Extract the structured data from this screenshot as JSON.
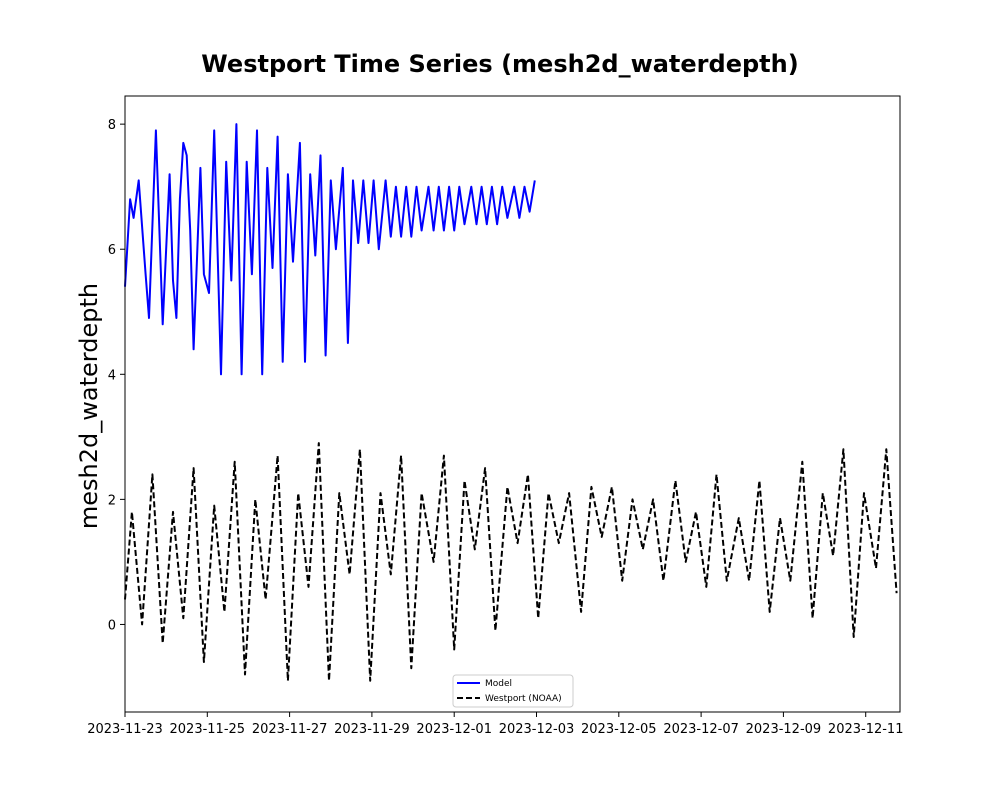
{
  "chart_data": {
    "type": "line",
    "title": "Westport Time Series (mesh2d_waterdepth)",
    "xlabel": "",
    "ylabel": "mesh2d_waterdepth",
    "x_axis": "date",
    "xlim": [
      "2023-11-23T00:00",
      "2023-12-11T20:00"
    ],
    "ylim": [
      -1.4,
      8.45
    ],
    "x_ticks": [
      "2023-11-23",
      "2023-11-25",
      "2023-11-27",
      "2023-11-29",
      "2023-12-01",
      "2023-12-03",
      "2023-12-05",
      "2023-12-07",
      "2023-12-09",
      "2023-12-11"
    ],
    "y_ticks": [
      0,
      2,
      4,
      6,
      8
    ],
    "grid": false,
    "legend_position": "bottom-center",
    "series": [
      {
        "name": "Model",
        "color": "#0000ff",
        "style": "solid",
        "x": [
          "2023-11-23T00:00",
          "2023-11-23T03:00",
          "2023-11-23T05:00",
          "2023-11-23T08:00",
          "2023-11-23T12:00",
          "2023-11-23T14:00",
          "2023-11-23T18:00",
          "2023-11-23T22:00",
          "2023-11-24T02:00",
          "2023-11-24T04:00",
          "2023-11-24T06:00",
          "2023-11-24T08:00",
          "2023-11-24T10:00",
          "2023-11-24T12:00",
          "2023-11-24T14:00",
          "2023-11-24T16:00",
          "2023-11-24T20:00",
          "2023-11-24T22:00",
          "2023-11-25T01:00",
          "2023-11-25T04:00",
          "2023-11-25T08:00",
          "2023-11-25T11:00",
          "2023-11-25T14:00",
          "2023-11-25T17:00",
          "2023-11-25T20:00",
          "2023-11-25T23:00",
          "2023-11-26T02:00",
          "2023-11-26T05:00",
          "2023-11-26T08:00",
          "2023-11-26T11:00",
          "2023-11-26T14:00",
          "2023-11-26T17:00",
          "2023-11-26T20:00",
          "2023-11-26T23:00",
          "2023-11-27T02:00",
          "2023-11-27T06:00",
          "2023-11-27T09:00",
          "2023-11-27T12:00",
          "2023-11-27T15:00",
          "2023-11-27T18:00",
          "2023-11-27T21:00",
          "2023-11-28T00:00",
          "2023-11-28T03:00",
          "2023-11-28T07:00",
          "2023-11-28T10:00",
          "2023-11-28T13:00",
          "2023-11-28T16:00",
          "2023-11-28T19:00",
          "2023-11-28T22:00",
          "2023-11-29T01:00",
          "2023-11-29T04:00",
          "2023-11-29T08:00",
          "2023-11-29T11:00",
          "2023-11-29T14:00",
          "2023-11-29T17:00",
          "2023-11-29T20:00",
          "2023-11-29T23:00",
          "2023-11-30T02:00",
          "2023-11-30T05:00",
          "2023-11-30T09:00",
          "2023-11-30T12:00",
          "2023-11-30T15:00",
          "2023-11-30T18:00",
          "2023-11-30T21:00",
          "2023-12-01T00:00",
          "2023-12-01T03:00",
          "2023-12-01T06:00",
          "2023-12-01T10:00",
          "2023-12-01T13:00",
          "2023-12-01T16:00",
          "2023-12-01T19:00",
          "2023-12-01T22:00",
          "2023-12-02T01:00",
          "2023-12-02T04:00",
          "2023-12-02T07:00",
          "2023-12-02T11:00",
          "2023-12-02T14:00",
          "2023-12-02T17:00",
          "2023-12-02T20:00",
          "2023-12-02T23:00"
        ],
        "values": [
          5.4,
          6.8,
          6.5,
          7.1,
          5.6,
          4.9,
          7.9,
          4.8,
          7.2,
          5.5,
          4.9,
          6.8,
          7.7,
          7.5,
          6.3,
          4.4,
          7.3,
          5.6,
          5.3,
          7.9,
          4.0,
          7.4,
          5.5,
          8.0,
          4.0,
          7.4,
          5.6,
          7.9,
          4.0,
          7.3,
          5.7,
          7.8,
          4.2,
          7.2,
          5.8,
          7.7,
          4.2,
          7.2,
          5.9,
          7.5,
          4.3,
          7.1,
          6.0,
          7.3,
          4.5,
          7.1,
          6.1,
          7.1,
          6.1,
          7.1,
          6.0,
          7.1,
          6.2,
          7.0,
          6.2,
          7.0,
          6.2,
          7.0,
          6.3,
          7.0,
          6.3,
          7.0,
          6.3,
          7.0,
          6.3,
          7.0,
          6.4,
          7.0,
          6.4,
          7.0,
          6.4,
          7.0,
          6.4,
          7.0,
          6.5,
          7.0,
          6.5,
          7.0,
          6.6,
          7.1
        ]
      },
      {
        "name": "Westport (NOAA)",
        "color": "#000000",
        "style": "dashed",
        "x": [
          "2023-11-23T00:00",
          "2023-11-23T04:00",
          "2023-11-23T10:00",
          "2023-11-23T16:00",
          "2023-11-23T22:00",
          "2023-11-24T04:00",
          "2023-11-24T10:00",
          "2023-11-24T16:00",
          "2023-11-24T22:00",
          "2023-11-25T04:00",
          "2023-11-25T10:00",
          "2023-11-25T16:00",
          "2023-11-25T22:00",
          "2023-11-26T04:00",
          "2023-11-26T10:00",
          "2023-11-26T17:00",
          "2023-11-26T23:00",
          "2023-11-27T05:00",
          "2023-11-27T11:00",
          "2023-11-27T17:00",
          "2023-11-27T23:00",
          "2023-11-28T05:00",
          "2023-11-28T11:00",
          "2023-11-28T17:00",
          "2023-11-28T23:00",
          "2023-11-29T05:00",
          "2023-11-29T11:00",
          "2023-11-29T17:00",
          "2023-11-29T23:00",
          "2023-11-30T05:00",
          "2023-11-30T12:00",
          "2023-11-30T18:00",
          "2023-12-01T00:00",
          "2023-12-01T06:00",
          "2023-12-01T12:00",
          "2023-12-01T18:00",
          "2023-12-02T00:00",
          "2023-12-02T07:00",
          "2023-12-02T13:00",
          "2023-12-02T19:00",
          "2023-12-03T01:00",
          "2023-12-03T07:00",
          "2023-12-03T13:00",
          "2023-12-03T19:00",
          "2023-12-04T02:00",
          "2023-12-04T08:00",
          "2023-12-04T14:00",
          "2023-12-04T20:00",
          "2023-12-05T02:00",
          "2023-12-05T08:00",
          "2023-12-05T14:00",
          "2023-12-05T20:00",
          "2023-12-06T02:00",
          "2023-12-06T09:00",
          "2023-12-06T15:00",
          "2023-12-06T21:00",
          "2023-12-07T03:00",
          "2023-12-07T09:00",
          "2023-12-07T15:00",
          "2023-12-07T22:00",
          "2023-12-08T04:00",
          "2023-12-08T10:00",
          "2023-12-08T16:00",
          "2023-12-08T22:00",
          "2023-12-09T04:00",
          "2023-12-09T11:00",
          "2023-12-09T17:00",
          "2023-12-09T23:00",
          "2023-12-10T05:00",
          "2023-12-10T11:00",
          "2023-12-10T17:00",
          "2023-12-10T23:00",
          "2023-12-11T06:00",
          "2023-12-11T12:00",
          "2023-12-11T18:00"
        ],
        "values": [
          0.4,
          1.8,
          0.0,
          2.4,
          -0.3,
          1.8,
          0.1,
          2.5,
          -0.6,
          1.9,
          0.2,
          2.6,
          -0.8,
          2.0,
          0.4,
          2.7,
          -0.9,
          2.1,
          0.6,
          2.9,
          -0.9,
          2.1,
          0.8,
          2.8,
          -0.9,
          2.1,
          0.8,
          2.7,
          -0.7,
          2.1,
          1.0,
          2.7,
          -0.4,
          2.3,
          1.2,
          2.5,
          -0.1,
          2.2,
          1.3,
          2.4,
          0.1,
          2.1,
          1.3,
          2.1,
          0.2,
          2.2,
          1.4,
          2.2,
          0.7,
          2.0,
          1.2,
          2.0,
          0.7,
          2.3,
          1.0,
          1.8,
          0.6,
          2.4,
          0.7,
          1.7,
          0.7,
          2.3,
          0.2,
          1.7,
          0.7,
          2.6,
          0.1,
          2.1,
          1.1,
          2.8,
          -0.2,
          2.1,
          0.9,
          2.8,
          0.5
        ]
      }
    ]
  }
}
